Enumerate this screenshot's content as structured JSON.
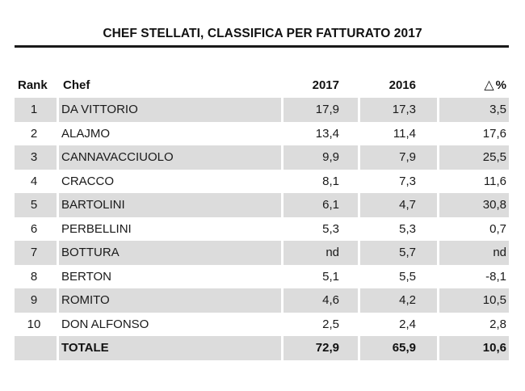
{
  "title": "CHEF STELLATI, CLASSIFICA PER FATTURATO 2017",
  "columns": {
    "rank": "Rank",
    "chef": "Chef",
    "y2017": "2017",
    "y2016": "2016",
    "delta_symbol": "△",
    "delta": "%"
  },
  "rows": [
    {
      "rank": "1",
      "chef": "DA VITTORIO",
      "y2017": "17,9",
      "y2016": "17,3",
      "delta": "3,5"
    },
    {
      "rank": "2",
      "chef": "ALAJMO",
      "y2017": "13,4",
      "y2016": "11,4",
      "delta": "17,6"
    },
    {
      "rank": "3",
      "chef": "CANNAVACCIUOLO",
      "y2017": "9,9",
      "y2016": "7,9",
      "delta": "25,5"
    },
    {
      "rank": "4",
      "chef": "CRACCO",
      "y2017": "8,1",
      "y2016": "7,3",
      "delta": "11,6"
    },
    {
      "rank": "5",
      "chef": "BARTOLINI",
      "y2017": "6,1",
      "y2016": "4,7",
      "delta": "30,8"
    },
    {
      "rank": "6",
      "chef": "PERBELLINI",
      "y2017": "5,3",
      "y2016": "5,3",
      "delta": "0,7"
    },
    {
      "rank": "7",
      "chef": "BOTTURA",
      "y2017": "nd",
      "y2016": "5,7",
      "delta": "nd"
    },
    {
      "rank": "8",
      "chef": "BERTON",
      "y2017": "5,1",
      "y2016": "5,5",
      "delta": "-8,1"
    },
    {
      "rank": "9",
      "chef": "ROMITO",
      "y2017": "4,6",
      "y2016": "4,2",
      "delta": "10,5"
    },
    {
      "rank": "10",
      "chef": "DON ALFONSO",
      "y2017": "2,5",
      "y2016": "2,4",
      "delta": "2,8"
    }
  ],
  "total": {
    "label": "TOTALE",
    "y2017": "72,9",
    "y2016": "65,9",
    "delta": "10,6"
  },
  "colors": {
    "shade": "#dcdcdc",
    "text": "#1a1a1a",
    "rule": "#1a1a1a"
  }
}
